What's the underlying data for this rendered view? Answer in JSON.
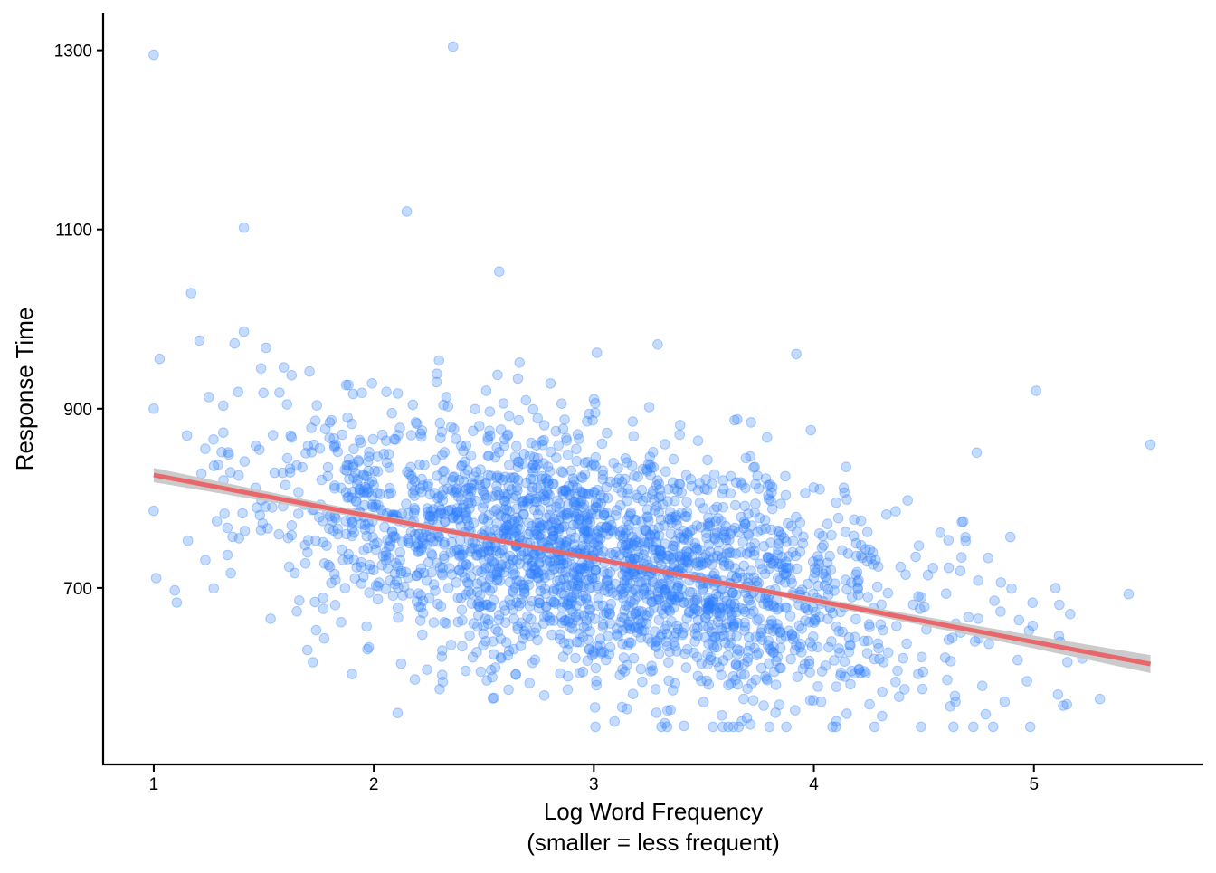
{
  "chart_data": {
    "type": "scatter",
    "title": "",
    "xlabel_lines": [
      "Log Word Frequency",
      "(smaller = less frequent)"
    ],
    "ylabel": "Response Time",
    "xlim": [
      0.77,
      5.77
    ],
    "ylim": [
      502,
      1342
    ],
    "x_ticks": [
      1,
      2,
      3,
      4,
      5
    ],
    "y_ticks": [
      700,
      900,
      1100,
      1300
    ],
    "grid": false,
    "legend": "none",
    "point_color": "#2d7fff",
    "point_opacity": 0.27,
    "fit_color": "#e8676a",
    "band_color": "#c8c8c8",
    "fit_line": {
      "x": [
        1.0,
        5.53
      ],
      "y": [
        826,
        615
      ],
      "band_halfwidth_ends": [
        8,
        10
      ],
      "band_halfwidth_mid": 2.5
    },
    "notable_points": [
      {
        "x": 1.0,
        "y": 1295
      },
      {
        "x": 2.36,
        "y": 1304
      },
      {
        "x": 1.41,
        "y": 1102
      },
      {
        "x": 2.15,
        "y": 1120
      },
      {
        "x": 1.0,
        "y": 900
      },
      {
        "x": 1.0,
        "y": 786
      },
      {
        "x": 1.17,
        "y": 1029
      },
      {
        "x": 2.57,
        "y": 1053
      },
      {
        "x": 5.53,
        "y": 860
      },
      {
        "x": 5.01,
        "y": 920
      },
      {
        "x": 3.92,
        "y": 961
      },
      {
        "x": 4.74,
        "y": 851
      },
      {
        "x": 3.41,
        "y": 546
      },
      {
        "x": 4.31,
        "y": 557
      },
      {
        "x": 5.3,
        "y": 576
      },
      {
        "x": 5.15,
        "y": 570
      },
      {
        "x": 1.41,
        "y": 986
      },
      {
        "x": 1.51,
        "y": 968
      },
      {
        "x": 1.25,
        "y": 913
      }
    ],
    "cloud": {
      "n": 2500,
      "x_mean": 3.0,
      "x_sd": 0.75,
      "x_min": 1.0,
      "x_max": 5.53,
      "intercept": 873,
      "slope": -46.6,
      "resid_sd": 68,
      "y_min": 545,
      "y_max": 1060
    }
  }
}
